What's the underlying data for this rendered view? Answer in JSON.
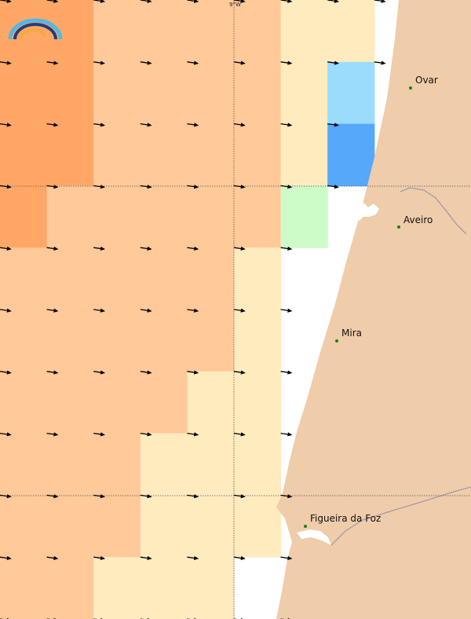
{
  "map": {
    "meridian_label": "9°W",
    "colors": {
      "c1": "#ffa767",
      "c2": "#ffc999",
      "c3": "#ffebbe",
      "c4": "#cefcc8",
      "c5": "#9bdcfd",
      "c6": "#56a8fb",
      "land": "#efccaa",
      "coast": "#8f8fa8",
      "arrow": "#000000",
      "city_dot": "#1a7f1a"
    },
    "grid": [
      [
        "c1",
        "c1",
        "c2",
        "c2",
        "c2",
        "c2",
        "c3",
        "c3",
        ""
      ],
      [
        "c1",
        "c1",
        "c2",
        "c2",
        "c2",
        "c2",
        "c3",
        "c5",
        ""
      ],
      [
        "c1",
        "c1",
        "c2",
        "c2",
        "c2",
        "c2",
        "c3",
        "c6",
        ""
      ],
      [
        "c1",
        "c2",
        "c2",
        "c2",
        "c2",
        "c2",
        "c4",
        "",
        ""
      ],
      [
        "c2",
        "c2",
        "c2",
        "c2",
        "c2",
        "c3",
        "",
        "",
        ""
      ],
      [
        "c2",
        "c2",
        "c2",
        "c2",
        "c2",
        "c3",
        "",
        "",
        ""
      ],
      [
        "c2",
        "c2",
        "c2",
        "c2",
        "c3",
        "c3",
        "",
        "",
        ""
      ],
      [
        "c2",
        "c2",
        "c2",
        "c3",
        "c3",
        "c3",
        "",
        "",
        ""
      ],
      [
        "c2",
        "c2",
        "c2",
        "c3",
        "c3",
        "c3",
        "",
        "",
        ""
      ],
      [
        "c2",
        "c2",
        "c3",
        "c3",
        "c3",
        "",
        "",
        "",
        ""
      ]
    ],
    "wind_direction_deg": 8,
    "cities": [
      {
        "name": "Ovar"
      },
      {
        "name": "Aveiro"
      },
      {
        "name": "Mira"
      },
      {
        "name": "Figueira da Foz"
      }
    ],
    "logo_icon": "rainbow-logo-icon"
  }
}
